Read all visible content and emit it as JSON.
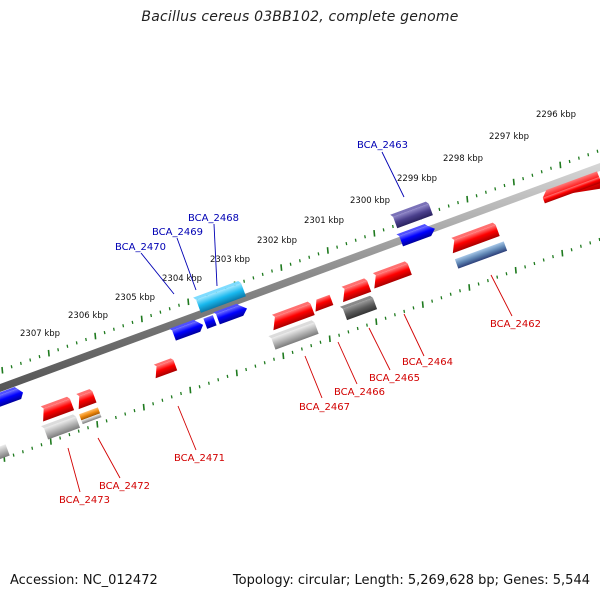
{
  "title": "Bacillus cereus 03BB102, complete genome",
  "accession": "Accession: NC_012472",
  "topology": "Topology: circular; Length: 5,269,628 bp; Genes: 5,544",
  "colors": {
    "forward_gene": "#0000ff",
    "reverse_gene": "#ff0000",
    "cyan_gene": "#18b8ee",
    "navy_gene": "#4a3f8c",
    "gray_gene": "#b4b4b4",
    "dark_gray_gene": "#5c5c5c",
    "orange_gene": "#f08a10",
    "forward_label": "#0000b4",
    "reverse_label": "#d20000",
    "backbone": "#8a8a8a",
    "tick": "#1e7a1e"
  },
  "kbp_ticks": [
    {
      "label": "2296 kbp"
    },
    {
      "label": "2297 kbp"
    },
    {
      "label": "2298 kbp"
    },
    {
      "label": "2299 kbp"
    },
    {
      "label": "2300 kbp"
    },
    {
      "label": "2301 kbp"
    },
    {
      "label": "2302 kbp"
    },
    {
      "label": "2303 kbp"
    },
    {
      "label": "2304 kbp"
    },
    {
      "label": "2305 kbp"
    },
    {
      "label": "2306 kbp"
    },
    {
      "label": "2307 kbp"
    }
  ],
  "gene_labels": {
    "BCA_2463": "BCA_2463",
    "BCA_2468": "BCA_2468",
    "BCA_2469": "BCA_2469",
    "BCA_2470": "BCA_2470",
    "BCA_2462": "BCA_2462",
    "BCA_2464": "BCA_2464",
    "BCA_2465": "BCA_2465",
    "BCA_2466": "BCA_2466",
    "BCA_2467": "BCA_2467",
    "BCA_2471": "BCA_2471",
    "BCA_2472": "BCA_2472",
    "BCA_2473": "BCA_2473"
  }
}
